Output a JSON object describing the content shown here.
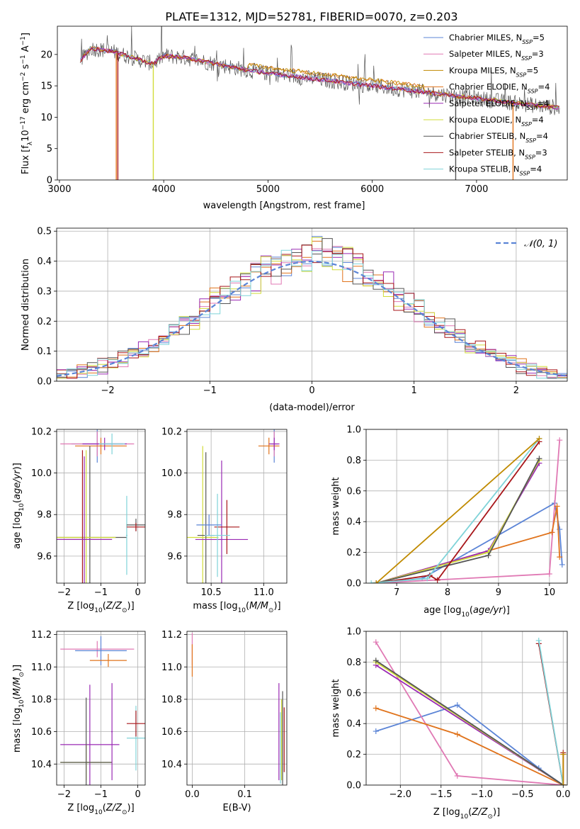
{
  "page_title": "PLATE=1312, MJD=52781, FIBERID=0070, z=0.203",
  "series": [
    {
      "name": "Chabrier MILES, N",
      "sub": "SSP",
      "suffix": "=5",
      "color": "#5b84d6"
    },
    {
      "name": "Salpeter MILES, N",
      "sub": "SSP",
      "suffix": "=3",
      "color": "#e079b4"
    },
    {
      "name": "Kroupa MILES, N",
      "sub": "SSP",
      "suffix": "=5",
      "color": "#c08a00"
    },
    {
      "name": "Chabrier ELODIE, N",
      "sub": "SSP",
      "suffix": "=4",
      "color": "#e0731c"
    },
    {
      "name": "Salpeter ELODIE, N",
      "sub": "SSP",
      "suffix": "=4",
      "color": "#9a2ab4"
    },
    {
      "name": "Kroupa ELODIE, N",
      "sub": "SSP",
      "suffix": "=4",
      "color": "#d2dc3a"
    },
    {
      "name": "Chabrier STELIB, N",
      "sub": "SSP",
      "suffix": "=4",
      "color": "#555555"
    },
    {
      "name": "Salpeter STELIB, N",
      "sub": "SSP",
      "suffix": "=3",
      "color": "#a8161a"
    },
    {
      "name": "Kroupa STELIB, N",
      "sub": "SSP",
      "suffix": "=4",
      "color": "#7fd3d8"
    }
  ],
  "chart_data": [
    {
      "id": "spectrum",
      "type": "line",
      "xlabel": "wavelength [Angstrom, rest frame]",
      "ylabel": "Flux [f",
      "ylabel_full": "Flux [f_λ10^-17 erg cm^-2 s^-1 A^-1]",
      "xlim": [
        2980,
        7870
      ],
      "ylim": [
        0,
        24.5
      ],
      "xticks": [
        3000,
        4000,
        5000,
        6000,
        7000
      ],
      "yticks": [
        0,
        5,
        10,
        15,
        20
      ],
      "continuum_points": [
        [
          3200,
          19.0
        ],
        [
          3300,
          21.0
        ],
        [
          3500,
          20.5
        ],
        [
          3700,
          19.5
        ],
        [
          3900,
          18.5
        ],
        [
          4000,
          19.8
        ],
        [
          4200,
          19.5
        ],
        [
          4500,
          18.5
        ],
        [
          4800,
          17.5
        ],
        [
          5000,
          17.0
        ],
        [
          5500,
          16.0
        ],
        [
          6000,
          15.0
        ],
        [
          6500,
          14.0
        ],
        [
          7000,
          13.0
        ],
        [
          7500,
          12.0
        ],
        [
          7800,
          11.5
        ]
      ],
      "drop_lines": [
        [
          3545,
          "#e0731c"
        ],
        [
          3560,
          "#a8161a"
        ],
        [
          3900,
          "#d2dc3a"
        ],
        [
          6800,
          "#555555"
        ],
        [
          7350,
          "#e0731c"
        ]
      ]
    },
    {
      "id": "residuals",
      "type": "histogram",
      "xlabel": "(data-model)/error",
      "ylabel": "Normed distribution",
      "xlim": [
        -2.5,
        2.5
      ],
      "ylim": [
        0,
        0.51
      ],
      "xticks": [
        -2,
        -1,
        0,
        1,
        2
      ],
      "xtick_labels": [
        "−2",
        "−1",
        "0",
        "1",
        "2"
      ],
      "yticks": [
        0.0,
        0.1,
        0.2,
        0.3,
        0.4,
        0.5
      ],
      "ytick_labels": [
        "0.0",
        "0.1",
        "0.2",
        "0.3",
        "0.4",
        "0.5"
      ],
      "reference_curve": {
        "label": "N(0,1)",
        "mean": 0,
        "sigma": 1
      },
      "bin_width": 0.1
    },
    {
      "id": "age-vs-Z",
      "type": "scatter",
      "xlabel": "Z [log10(Z/Z⊙)]",
      "ylabel": "age  [log10(age/yr)]",
      "xlim": [
        -2.2,
        0.2
      ],
      "ylim": [
        9.47,
        10.21
      ],
      "xticks": [
        -2,
        -1,
        0
      ],
      "xtick_labels": [
        "−2",
        "−1",
        "0"
      ],
      "yticks": [
        9.6,
        9.8,
        10.0,
        10.2
      ],
      "ytick_labels": [
        "9.6",
        "9.8",
        "10.0",
        "10.2"
      ],
      "points": [
        {
          "s": 0,
          "x": -1.1,
          "y": 10.14,
          "xe": 0.7,
          "ye": 0.09
        },
        {
          "s": 1,
          "x": -1.1,
          "y": 10.14,
          "xe": 1.0,
          "ye": 0.06
        },
        {
          "s": 3,
          "x": -1.0,
          "y": 10.13,
          "xe": 0.7,
          "ye": 0.04
        },
        {
          "s": 4,
          "x": -0.9,
          "y": 10.14,
          "xe": 0.6,
          "ye": 0.03
        },
        {
          "s": 8,
          "x": -0.7,
          "y": 10.14,
          "xe": 0.35,
          "ye": 0.05
        },
        {
          "s": 6,
          "x": -1.3,
          "y": 9.69,
          "xe": 1.0,
          "ye": 0.44
        },
        {
          "s": 5,
          "x": -1.4,
          "y": 9.69,
          "xe": 0.8,
          "ye": 0.42
        },
        {
          "s": 7,
          "x": -1.5,
          "y": 9.68,
          "xe": 0.8,
          "ye": 0.43
        },
        {
          "s": 4,
          "x": -1.45,
          "y": 9.68,
          "xe": 0.75,
          "ye": 0.4
        },
        {
          "s": 8,
          "x": -0.3,
          "y": 9.7,
          "xe": 0.02,
          "ye": 0.19
        },
        {
          "s": 6,
          "x": -0.05,
          "y": 9.75,
          "xe": 0.25,
          "ye": 0.03
        },
        {
          "s": 7,
          "x": -0.05,
          "y": 9.74,
          "xe": 0.25,
          "ye": 0.02
        }
      ]
    },
    {
      "id": "age-vs-mass",
      "type": "scatter",
      "xlabel": "mass [log10(M/M⊙)]",
      "ylabel": "",
      "xlim": [
        10.27,
        11.22
      ],
      "ylim": [
        9.47,
        10.21
      ],
      "xticks": [
        10.5,
        11.0
      ],
      "xtick_labels": [
        "10.5",
        "11.0"
      ],
      "yticks": [
        9.6,
        9.8,
        10.0,
        10.2
      ],
      "ytick_labels": [
        "9.6",
        "9.8",
        "10.0",
        "10.2"
      ],
      "points": [
        {
          "s": 0,
          "x": 11.1,
          "y": 10.14,
          "xe": 0.04,
          "ye": 0.09
        },
        {
          "s": 1,
          "x": 11.1,
          "y": 10.14,
          "xe": 0.02,
          "ye": 0.06
        },
        {
          "s": 3,
          "x": 11.05,
          "y": 10.13,
          "xe": 0.1,
          "ye": 0.04
        },
        {
          "s": 4,
          "x": 11.1,
          "y": 10.14,
          "xe": 0.05,
          "ye": 0.03
        },
        {
          "s": 5,
          "x": 10.42,
          "y": 9.69,
          "xe": 0.15,
          "ye": 0.44
        },
        {
          "s": 6,
          "x": 10.45,
          "y": 9.7,
          "xe": 0.08,
          "ye": 0.4
        },
        {
          "s": 4,
          "x": 10.6,
          "y": 9.68,
          "xe": 0.25,
          "ye": 0.38
        },
        {
          "s": 7,
          "x": 10.65,
          "y": 9.74,
          "xe": 0.12,
          "ye": 0.13
        },
        {
          "s": 8,
          "x": 10.56,
          "y": 9.7,
          "xe": 0.12,
          "ye": 0.2
        },
        {
          "s": 0,
          "x": 10.48,
          "y": 9.75,
          "xe": 0.12,
          "ye": 0.05
        }
      ]
    },
    {
      "id": "weight-vs-age",
      "type": "line",
      "xlabel": "age  [log10(age/yr)]",
      "ylabel": "mass weight",
      "xlim": [
        6.4,
        10.35
      ],
      "ylim": [
        0,
        1.0
      ],
      "xticks": [
        7,
        8,
        9,
        10
      ],
      "xtick_labels": [
        "7",
        "8",
        "9",
        "10"
      ],
      "yticks": [
        0.0,
        0.2,
        0.4,
        0.6,
        0.8,
        1.0
      ],
      "ytick_labels": [
        "0.0",
        "0.2",
        "0.4",
        "0.6",
        "0.8",
        "1.0"
      ],
      "lines": [
        {
          "s": 0,
          "x": [
            6.6,
            7.5,
            10.1,
            10.2,
            10.25
          ],
          "y": [
            0.0,
            0.03,
            0.52,
            0.35,
            0.12
          ]
        },
        {
          "s": 1,
          "x": [
            6.6,
            10.0,
            10.2
          ],
          "y": [
            0.0,
            0.06,
            0.93
          ]
        },
        {
          "s": 3,
          "x": [
            6.6,
            10.05,
            10.15,
            10.2
          ],
          "y": [
            0.0,
            0.33,
            0.5,
            0.17
          ]
        },
        {
          "s": 4,
          "x": [
            6.6,
            8.8,
            9.8
          ],
          "y": [
            0.0,
            0.21,
            0.78
          ]
        },
        {
          "s": 5,
          "x": [
            6.6,
            8.8,
            9.8
          ],
          "y": [
            0.0,
            0.2,
            0.8
          ]
        },
        {
          "s": 6,
          "x": [
            6.6,
            8.8,
            9.8
          ],
          "y": [
            0.0,
            0.18,
            0.81
          ]
        },
        {
          "s": 7,
          "x": [
            6.6,
            7.65,
            7.8,
            9.8
          ],
          "y": [
            0.0,
            0.05,
            0.02,
            0.92
          ]
        },
        {
          "s": 8,
          "x": [
            6.5,
            7.6,
            9.8
          ],
          "y": [
            0.0,
            0.03,
            0.94
          ]
        },
        {
          "s": 2,
          "x": [
            6.6,
            9.8
          ],
          "y": [
            0.0,
            0.94
          ]
        }
      ]
    },
    {
      "id": "mass-vs-Z",
      "type": "scatter",
      "xlabel": "Z [log10(Z/Z⊙)]",
      "ylabel": "mass [log10(M/M⊙)]",
      "xlim": [
        -2.2,
        0.2
      ],
      "ylim": [
        10.27,
        11.22
      ],
      "xticks": [
        -2,
        -1,
        0
      ],
      "xtick_labels": [
        "−2",
        "−1",
        "0"
      ],
      "yticks": [
        10.4,
        10.6,
        10.8,
        11.0,
        11.2
      ],
      "ytick_labels": [
        "10.4",
        "10.6",
        "10.8",
        "11.0",
        "11.2"
      ],
      "points": [
        {
          "s": 1,
          "x": -1.1,
          "y": 11.11,
          "xe": 1.0,
          "ye": 0.05
        },
        {
          "s": 0,
          "x": -1.0,
          "y": 11.1,
          "xe": 0.7,
          "ye": 0.09
        },
        {
          "s": 3,
          "x": -0.8,
          "y": 11.04,
          "xe": 0.5,
          "ye": 0.04
        },
        {
          "s": 4,
          "x": -1.3,
          "y": 10.52,
          "xe": 0.8,
          "ye": 0.37
        },
        {
          "s": 5,
          "x": -1.4,
          "y": 10.41,
          "xe": 0.7,
          "ye": 0.11
        },
        {
          "s": 6,
          "x": -1.4,
          "y": 10.41,
          "xe": 0.7,
          "ye": 0.4
        },
        {
          "s": 8,
          "x": -0.05,
          "y": 10.56,
          "xe": 0.25,
          "ye": 0.2
        },
        {
          "s": 7,
          "x": -0.05,
          "y": 10.65,
          "xe": 0.25,
          "ye": 0.08
        },
        {
          "s": 4,
          "x": -0.7,
          "y": 10.6,
          "xe": 0.02,
          "ye": 0.3
        }
      ]
    },
    {
      "id": "mass-vs-ebv",
      "type": "scatter",
      "xlabel": "E(B-V)",
      "ylabel": "",
      "xlim": [
        -0.01,
        0.18
      ],
      "ylim": [
        10.27,
        11.22
      ],
      "xticks": [
        0.0,
        0.1
      ],
      "xtick_labels": [
        "0.0",
        "0.1"
      ],
      "yticks": [
        10.4,
        10.6,
        10.8,
        11.0,
        11.2
      ],
      "ytick_labels": [
        "10.4",
        "10.6",
        "10.8",
        "11.0",
        "11.2"
      ],
      "points": [
        {
          "s": 1,
          "x": 0.0,
          "y": 11.11,
          "xe": 0.0,
          "ye": 0.1
        },
        {
          "s": 3,
          "x": 0.0,
          "y": 11.04,
          "xe": 0.0,
          "ye": 0.1
        },
        {
          "s": 4,
          "x": 0.165,
          "y": 10.6,
          "xe": 0.0,
          "ye": 0.3
        },
        {
          "s": 5,
          "x": 0.17,
          "y": 10.55,
          "xe": 0.0,
          "ye": 0.25
        },
        {
          "s": 6,
          "x": 0.172,
          "y": 10.55,
          "xe": 0.0,
          "ye": 0.3
        },
        {
          "s": 7,
          "x": 0.175,
          "y": 10.55,
          "xe": 0.0,
          "ye": 0.2
        },
        {
          "s": 8,
          "x": 0.168,
          "y": 10.5,
          "xe": 0.0,
          "ye": 0.22
        }
      ]
    },
    {
      "id": "weight-vs-Z",
      "type": "line",
      "xlabel": "Z [log10(Z/Z⊙)]",
      "ylabel": "mass weight",
      "xlim": [
        -2.42,
        0.05
      ],
      "ylim": [
        0,
        1.0
      ],
      "xticks": [
        -2.0,
        -1.5,
        -1.0,
        -0.5,
        0.0
      ],
      "xtick_labels": [
        "−2.0",
        "−1.5",
        "−1.0",
        "−0.5",
        "0.0"
      ],
      "yticks": [
        0.0,
        0.2,
        0.4,
        0.6,
        0.8,
        1.0
      ],
      "ytick_labels": [
        "0.0",
        "0.2",
        "0.4",
        "0.6",
        "0.8",
        "1.0"
      ],
      "lines": [
        {
          "s": 0,
          "x": [
            -2.3,
            -1.3,
            -0.3,
            0.0
          ],
          "y": [
            0.35,
            0.52,
            0.11,
            0.0
          ]
        },
        {
          "s": 1,
          "x": [
            -2.3,
            -1.3,
            0.0
          ],
          "y": [
            0.93,
            0.06,
            0.0
          ]
        },
        {
          "s": 3,
          "x": [
            -2.3,
            -1.3,
            0.0
          ],
          "y": [
            0.5,
            0.33,
            0.0
          ]
        },
        {
          "s": 4,
          "x": [
            -2.3,
            0.0
          ],
          "y": [
            0.78,
            0.0
          ]
        },
        {
          "s": 5,
          "x": [
            -2.3,
            0.0
          ],
          "y": [
            0.8,
            0.0
          ]
        },
        {
          "s": 6,
          "x": [
            -2.3,
            0.0
          ],
          "y": [
            0.81,
            0.0
          ]
        },
        {
          "s": 7,
          "x": [
            -0.3,
            0.0,
            0.0
          ],
          "y": [
            0.92,
            0.0,
            0.21
          ]
        },
        {
          "s": 8,
          "x": [
            -0.3,
            0.0
          ],
          "y": [
            0.94,
            0.0
          ]
        },
        {
          "s": 2,
          "x": [
            0.0,
            0.0
          ],
          "y": [
            0.2,
            0.0
          ]
        }
      ]
    }
  ]
}
